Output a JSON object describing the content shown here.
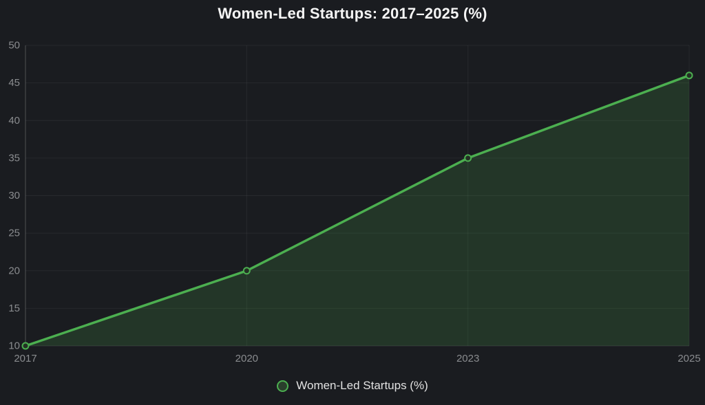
{
  "title": "Women-Led Startups: 2017–2025 (%)",
  "legend": {
    "label": "Women-Led Startups (%)"
  },
  "colors": {
    "background": "#1a1c20",
    "line": "#4caf50",
    "fill": "rgba(76, 175, 80, 0.18)",
    "marker_fill": "#233024",
    "grid": "rgba(255, 255, 255, 0.06)",
    "axis_border": "rgba(255, 255, 255, 0.18)",
    "tick_text": "#8a8c8f",
    "legend_text": "#e2e2e2",
    "title_text": "#f5f5f5",
    "legend_swatch_fill": "#2a3e2c"
  },
  "chart_data": {
    "type": "area",
    "categories": [
      "2017",
      "2020",
      "2023",
      "2025"
    ],
    "series": [
      {
        "name": "Women-Led Startups (%)",
        "values": [
          10,
          20,
          35,
          46
        ]
      }
    ],
    "title": "Women-Led Startups: 2017–2025 (%)",
    "xlabel": "",
    "ylabel": "",
    "ylim": [
      10,
      50
    ],
    "yticks": [
      10,
      15,
      20,
      25,
      30,
      35,
      40,
      45,
      50
    ],
    "grid": true,
    "legend_position": "bottom",
    "line_width": 3.5,
    "marker_radius": 4.5
  }
}
